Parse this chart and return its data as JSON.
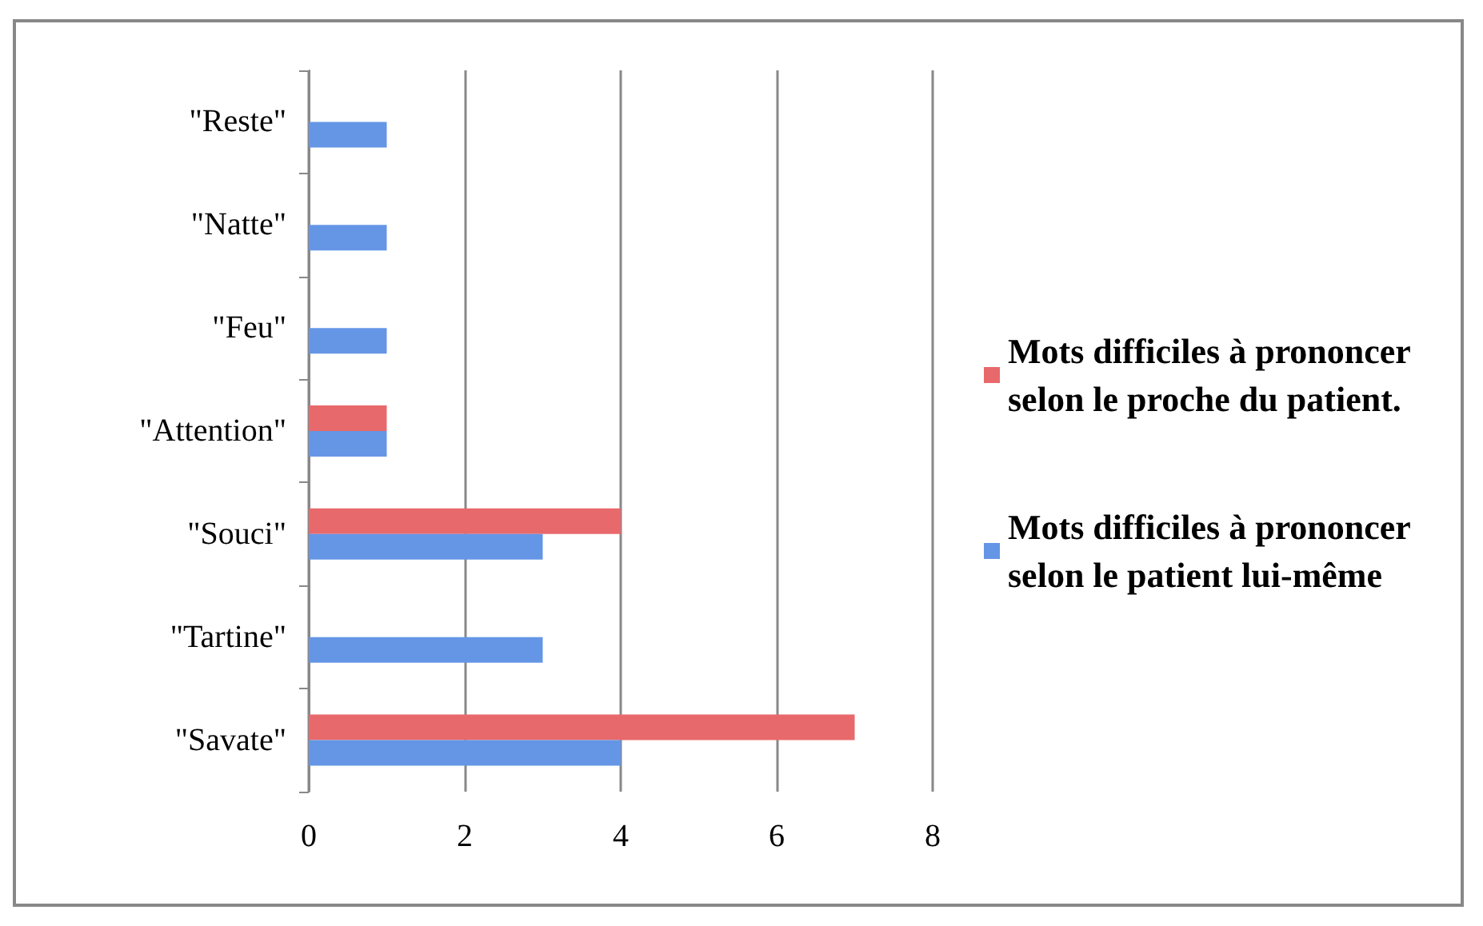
{
  "chart_data": {
    "type": "bar",
    "orientation": "horizontal",
    "categories": [
      "\"Reste\"",
      "\"Natte\"",
      "\"Feu\"",
      "\"Attention\"",
      "\"Souci\"",
      "\"Tartine\"",
      "\"Savate\""
    ],
    "series": [
      {
        "name": "Mots difficiles à prononcer selon le proche du patient.",
        "color": "#e8696b",
        "values": [
          0,
          0,
          0,
          1,
          4,
          0,
          7
        ]
      },
      {
        "name": "Mots difficiles à prononcer selon le patient lui-même",
        "color": "#6596e6",
        "values": [
          1,
          1,
          1,
          1,
          3,
          3,
          4
        ]
      }
    ],
    "xlim": [
      0,
      8
    ],
    "xticks": [
      0,
      2,
      4,
      6,
      8
    ],
    "grid": "x",
    "legend": "right"
  }
}
